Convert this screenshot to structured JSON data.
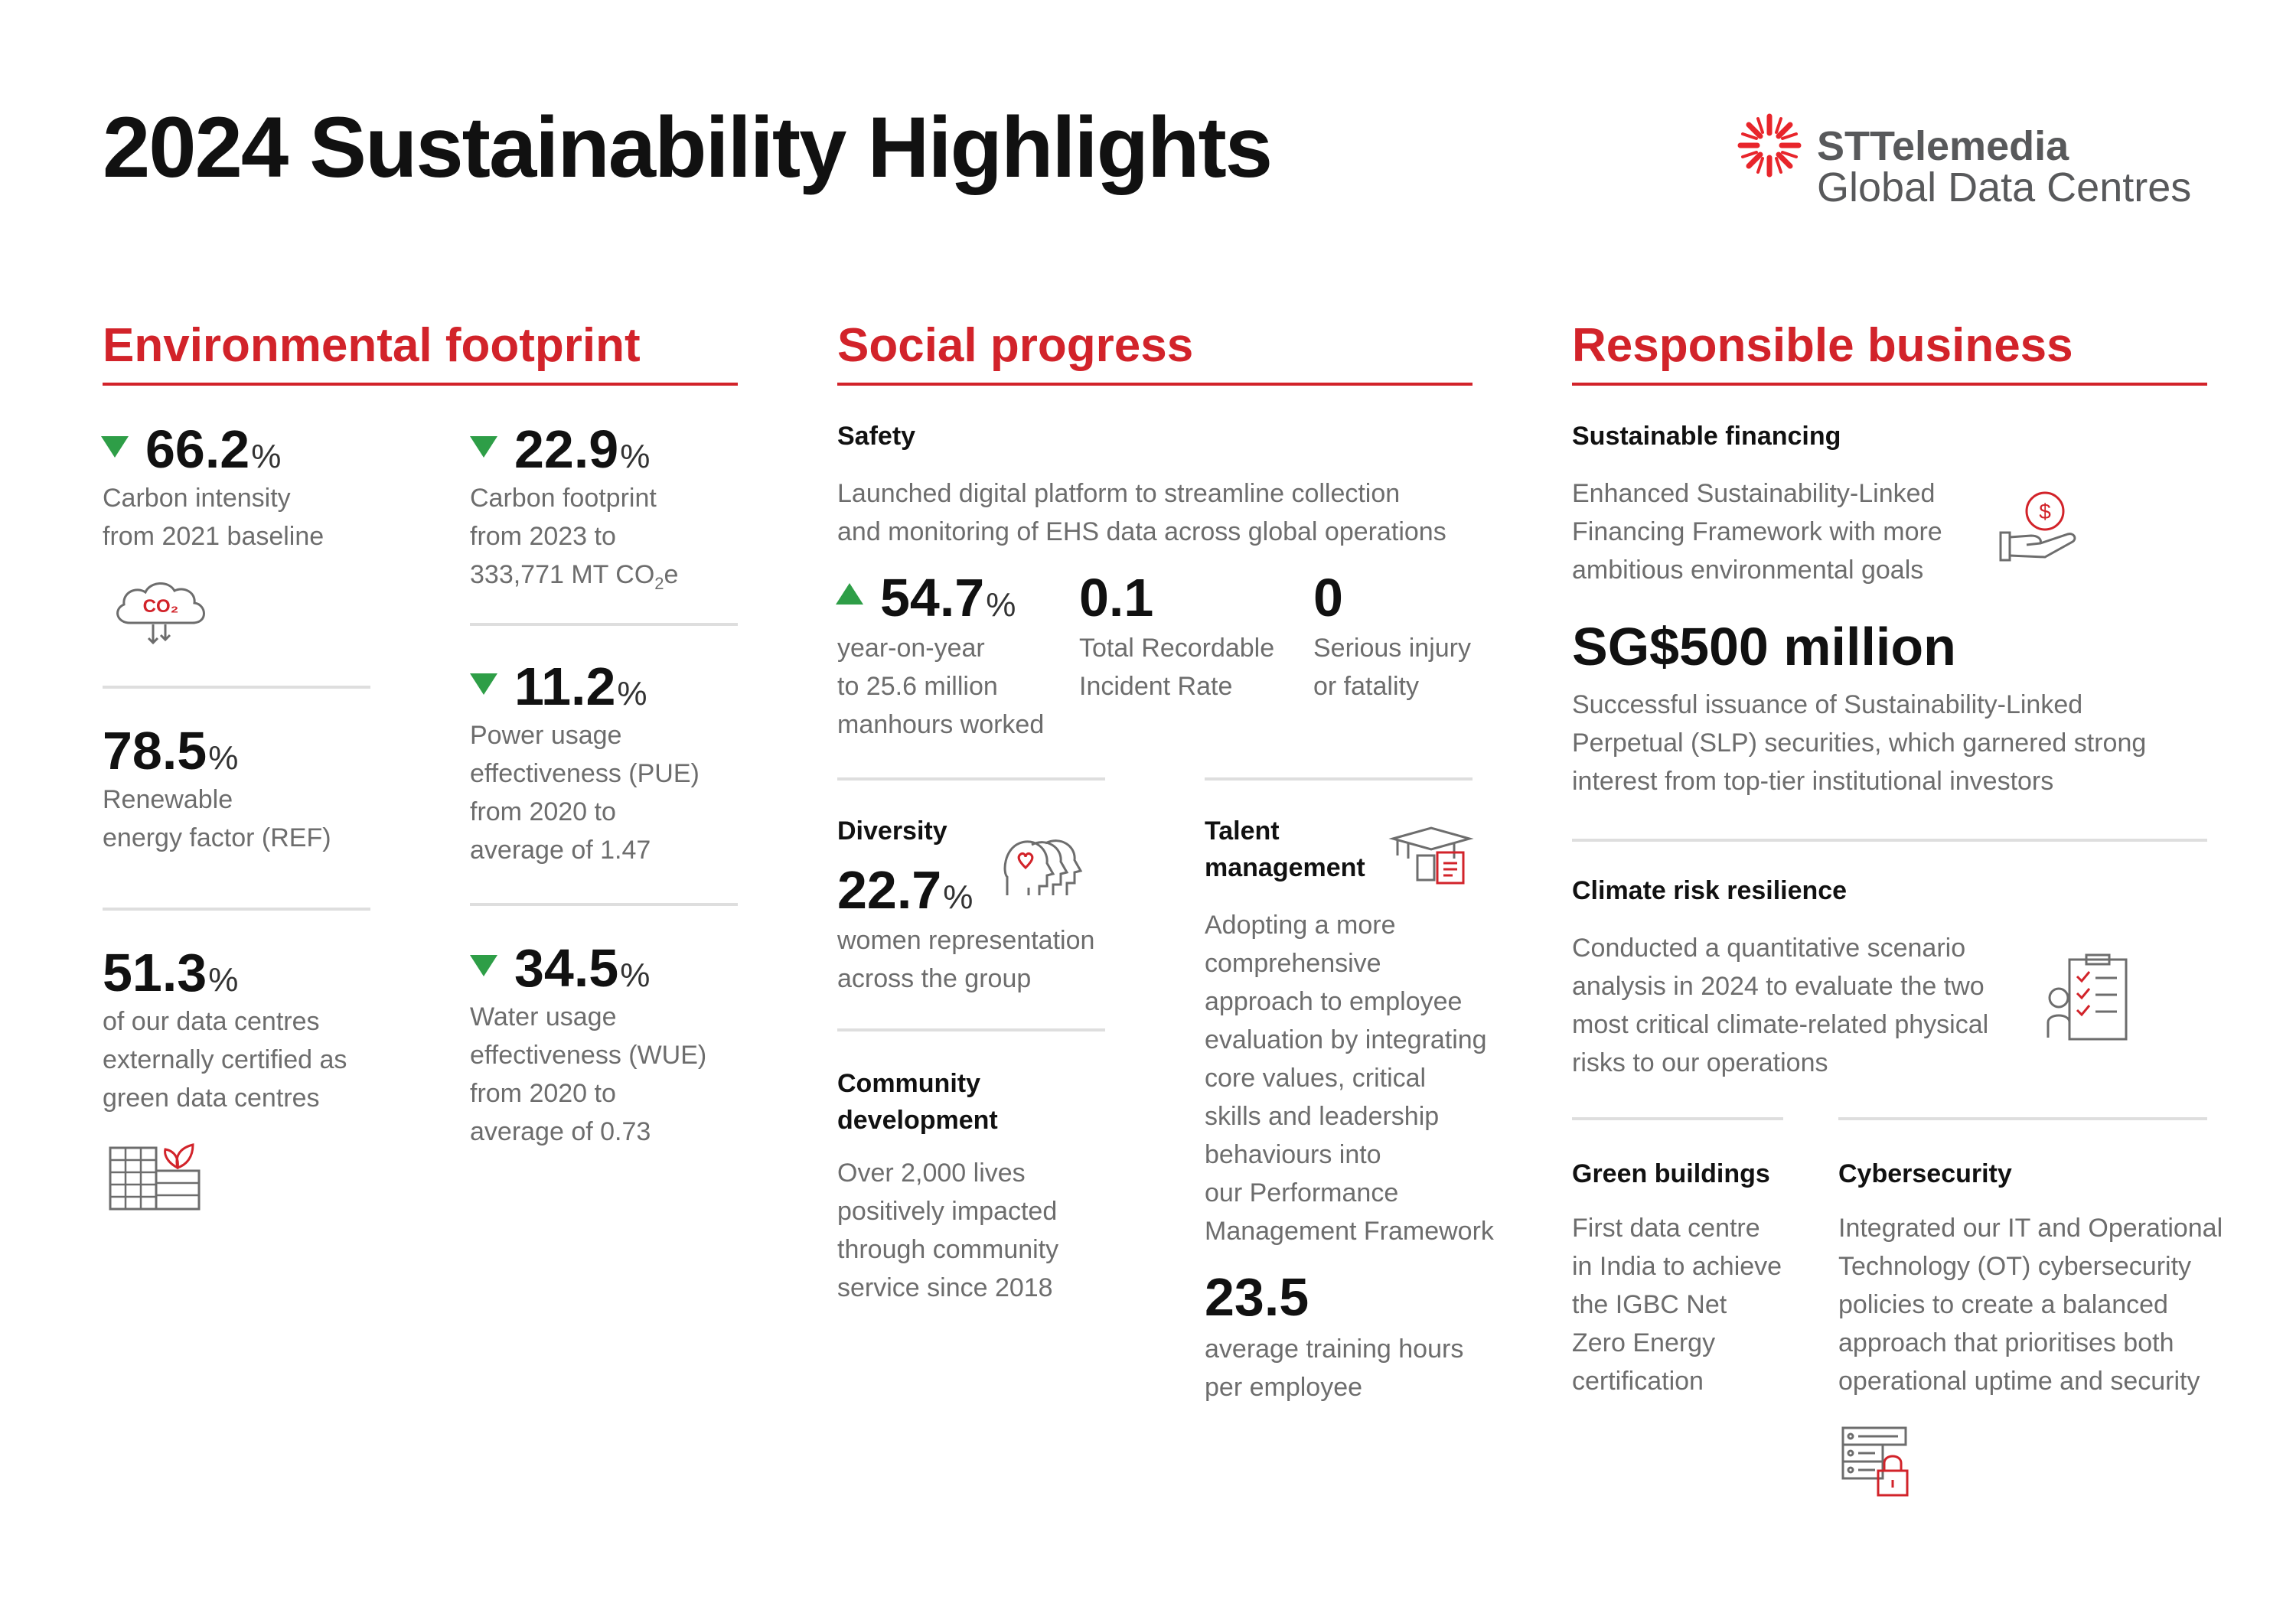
{
  "header": {
    "title": "2024 Sustainability Highlights",
    "logo_line1": "STTelemedia",
    "logo_line2": "Global Data Centres"
  },
  "colors": {
    "accent": "#d2232a",
    "positive": "#2e9e47",
    "text_muted": "#6d6d6d",
    "rule": "#dedede"
  },
  "environmental": {
    "title": "Environmental footprint",
    "carbon_intensity": {
      "value": "66.2",
      "unit": "%",
      "line1": "Carbon intensity",
      "line2": "from 2021 baseline",
      "icon": "co2-cloud-icon",
      "icon_text": "CO₂"
    },
    "carbon_footprint": {
      "value": "22.9",
      "unit": "%",
      "line1": "Carbon footprint",
      "line2": "from 2023 to",
      "line3_main": "333,771 MT CO",
      "line3_sub": "2",
      "line3_end": "e"
    },
    "renewable": {
      "value": "78.5",
      "unit": "%",
      "line1": "Renewable",
      "line2": "energy factor (REF)"
    },
    "pue": {
      "value": "11.2",
      "unit": "%",
      "line1": "Power usage",
      "line2": "effectiveness (PUE)",
      "line3": "from 2020 to",
      "line4": "average of 1.47"
    },
    "certified": {
      "value": "51.3",
      "unit": "%",
      "line1": "of our data centres",
      "line2": "externally certified as",
      "line3": "green data centres",
      "icon": "green-building-icon"
    },
    "wue": {
      "value": "34.5",
      "unit": "%",
      "line1": "Water usage",
      "line2": "effectiveness (WUE)",
      "line3": "from 2020 to",
      "line4": "average of 0.73"
    }
  },
  "social": {
    "title": "Social progress",
    "safety": {
      "heading": "Safety",
      "line1": "Launched digital platform to streamline collection",
      "line2": "and monitoring of EHS data across global operations",
      "manhours": {
        "value": "54.7",
        "unit": "%",
        "line1": "year-on-year",
        "line2": "to 25.6 million",
        "line3": "manhours worked"
      },
      "trir": {
        "value": "0.1",
        "line1": "Total Recordable",
        "line2": "Incident Rate"
      },
      "injury": {
        "value": "0",
        "line1": "Serious injury",
        "line2": "or fatality"
      }
    },
    "diversity": {
      "heading": "Diversity",
      "value": "22.7",
      "unit": "%",
      "line1": "women representation",
      "line2": "across the group",
      "icon": "people-heart-icon"
    },
    "community": {
      "heading1": "Community",
      "heading2": "development",
      "line1": "Over 2,000 lives",
      "line2": "positively impacted",
      "line3": "through community",
      "line4": "service since 2018"
    },
    "talent": {
      "heading1": "Talent",
      "heading2": "management",
      "icon": "graduation-cap-icon",
      "lines": [
        "Adopting a more",
        "comprehensive",
        "approach to employee",
        "evaluation by integrating",
        "core values, critical",
        "skills and leadership",
        "behaviours into",
        "our Performance",
        "Management Framework"
      ],
      "value": "23.5",
      "value_line1": "average training hours",
      "value_line2": "per employee"
    }
  },
  "responsible": {
    "title": "Responsible business",
    "financing": {
      "heading": "Sustainable financing",
      "line1": "Enhanced Sustainability-Linked",
      "line2": "Financing Framework with more",
      "line3": "ambitious environmental goals",
      "icon": "hand-coin-icon",
      "coin_symbol": "$",
      "amount": "SG$500 million",
      "amount_line1": "Successful issuance of Sustainability-Linked",
      "amount_line2": "Perpetual (SLP) securities, which garnered strong",
      "amount_line3": "interest from top-tier institutional investors"
    },
    "climate": {
      "heading": "Climate risk resilience",
      "line1": "Conducted a quantitative scenario",
      "line2": "analysis in 2024 to evaluate the two",
      "line3": "most critical climate-related physical",
      "line4": "risks to our operations",
      "icon": "checklist-person-icon"
    },
    "green": {
      "heading": "Green buildings",
      "line1": "First data centre",
      "line2": "in India to achieve",
      "line3": "the IGBC Net",
      "line4": "Zero Energy",
      "line5": "certification"
    },
    "cyber": {
      "heading": "Cybersecurity",
      "line1": "Integrated our IT and Operational",
      "line2": "Technology (OT) cybersecurity",
      "line3": "policies to create a balanced",
      "line4": "approach that prioritises both",
      "line5": "operational uptime and security",
      "icon": "server-lock-icon"
    }
  }
}
